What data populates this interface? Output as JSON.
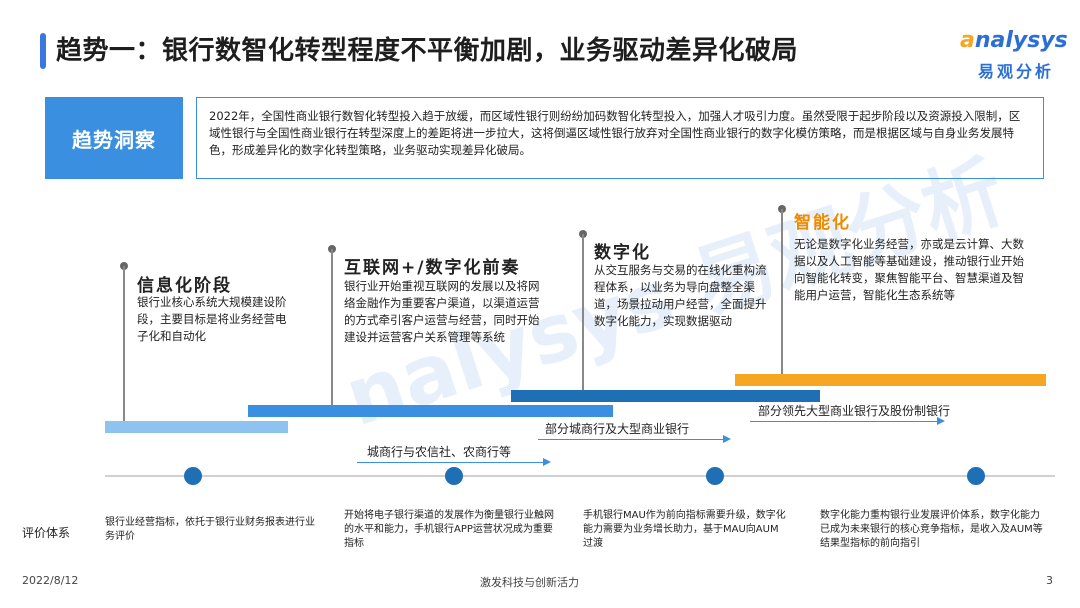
{
  "header": {
    "title": "趋势一：银行数智化转型程度不平衡加剧，业务驱动差异化破局",
    "logo_en_prefix": "a",
    "logo_en_rest": "nalysys",
    "logo_cn": "易观分析"
  },
  "insight": {
    "label": "趋势洞察",
    "text": "2022年，全国性商业银行数智化转型投入趋于放缓，而区域性银行则纷纷加码数智化转型投入，加强人才吸引力度。虽然受限于起步阶段以及资源投入限制，区域性银行与全国性商业银行在转型深度上的差距将进一步拉大，这将倒逼区域性银行放弃对全国性商业银行的数字化模仿策略，而是根据区域与自身业务发展特色，形成差异化的数字化转型策略，业务驱动实现差异化破局。"
  },
  "stages": [
    {
      "title": "信息化阶段",
      "desc": "银行业核心系统大规模建设阶段，主要目标是将业务经营电子化和自动化"
    },
    {
      "title": "互联网+/数字化前奏",
      "desc": "银行业开始重视互联网的发展以及将网络金融作为重要客户渠道，以渠道运营的方式牵引客户运营与经营，同时开始建设并运营客户关系管理等系统"
    },
    {
      "title": "数字化",
      "desc": "从交互服务与交易的在线化重构流程体系，以业务为导向盘整全渠道，场景拉动用户经营，全面提升数字化能力，实现数据驱动"
    },
    {
      "title": "智能化",
      "desc": "无论是数字化业务经营，亦或是云计算、大数据以及人工智能等基础建设，推动银行业开始向智能化转变，聚焦智能平台、智慧渠道及智能用户运营，智能化生态系统等"
    }
  ],
  "arrows": [
    {
      "label": "城商行与农信社、农商行等"
    },
    {
      "label": "部分城商行及大型商业银行"
    },
    {
      "label": "部分领先大型商业银行及股份制银行"
    }
  ],
  "evaluation": {
    "label": "评价体系",
    "items": [
      "银行业经营指标，依托于银行业财务报表进行业务评价",
      "开始将电子银行渠道的发展作为衡量银行业触网的水平和能力，手机银行APP运营状况成为重要指标",
      "手机银行MAU作为前向指标需要升级，数字化能力需要为业务增长助力，基于MAU向AUM过渡",
      "数字化能力重构银行业发展评价体系，数字化能力已成为未来银行的核心竞争指标，是收入及AUM等结果型指标的前向指引"
    ]
  },
  "footer": {
    "date": "2022/8/12",
    "slogan": "激发科技与创新活力",
    "page": "3"
  },
  "watermark": "nalysys 易观分析",
  "colors": {
    "accent_blue": "#3a8fe0",
    "dark_blue": "#1f6fb5",
    "orange": "#f5a623",
    "light_blue": "#8ec3f0"
  }
}
